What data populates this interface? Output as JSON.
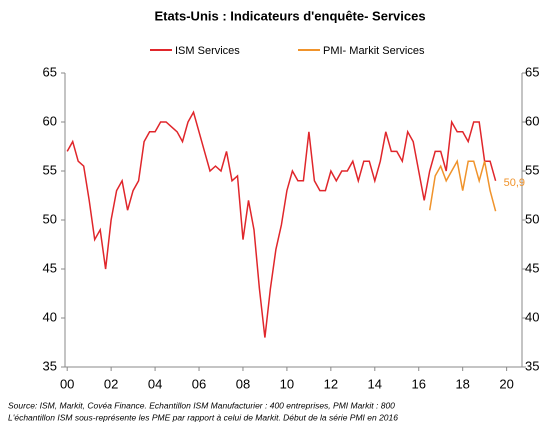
{
  "chart_data": {
    "type": "line",
    "title": "Etats-Unis : Indicateurs d'enquête- Services",
    "source": [
      "Source: ISM, Markit, Covéa Finance. Echantillon ISM Manufacturier : 400 entreprises, PMI Markit : 800",
      "L'échantillon ISM sous-représente les PME par rapport à celui de Markit. Début de la série PMI en 2016"
    ],
    "annotation": "50,9",
    "x": [
      2000,
      2000.25,
      2000.5,
      2000.75,
      2001,
      2001.25,
      2001.5,
      2001.75,
      2002,
      2002.25,
      2002.5,
      2002.75,
      2003,
      2003.25,
      2003.5,
      2003.75,
      2004,
      2004.25,
      2004.5,
      2004.75,
      2005,
      2005.25,
      2005.5,
      2005.75,
      2006,
      2006.25,
      2006.5,
      2006.75,
      2007,
      2007.25,
      2007.5,
      2007.75,
      2008,
      2008.25,
      2008.5,
      2008.75,
      2009,
      2009.25,
      2009.5,
      2009.75,
      2010,
      2010.25,
      2010.5,
      2010.75,
      2011,
      2011.25,
      2011.5,
      2011.75,
      2012,
      2012.25,
      2012.5,
      2012.75,
      2013,
      2013.25,
      2013.5,
      2013.75,
      2014,
      2014.25,
      2014.5,
      2014.75,
      2015,
      2015.25,
      2015.5,
      2015.75,
      2016,
      2016.25,
      2016.5,
      2016.75,
      2017,
      2017.25,
      2017.5,
      2017.75,
      2018,
      2018.25,
      2018.5,
      2018.75,
      2019,
      2019.25,
      2019.5
    ],
    "series": [
      {
        "name": "ISM Services",
        "color": "#e0262b",
        "values": [
          57,
          58,
          56,
          55.5,
          52,
          48,
          49,
          45,
          50,
          53,
          54,
          51,
          53,
          54,
          58,
          59,
          59,
          60,
          60,
          59.5,
          59,
          58,
          60,
          61,
          59,
          57,
          55,
          55.5,
          55,
          57,
          54,
          54.5,
          48,
          52,
          49,
          43,
          38,
          43,
          47,
          49.5,
          53,
          55,
          54,
          54,
          59,
          54,
          53,
          53,
          55,
          54,
          55,
          55,
          56,
          54,
          56,
          56,
          54,
          56,
          59,
          57,
          57,
          56,
          59,
          58,
          55,
          52,
          55,
          57,
          57,
          55,
          60,
          59,
          59,
          58,
          60,
          60,
          56,
          56,
          54
        ]
      },
      {
        "name": "PMI- Markit Services",
        "color": "#f0932b",
        "values": [
          null,
          null,
          null,
          null,
          null,
          null,
          null,
          null,
          null,
          null,
          null,
          null,
          null,
          null,
          null,
          null,
          null,
          null,
          null,
          null,
          null,
          null,
          null,
          null,
          null,
          null,
          null,
          null,
          null,
          null,
          null,
          null,
          null,
          null,
          null,
          null,
          null,
          null,
          null,
          null,
          null,
          null,
          null,
          null,
          null,
          null,
          null,
          null,
          null,
          null,
          null,
          null,
          null,
          null,
          null,
          null,
          null,
          null,
          null,
          null,
          null,
          null,
          null,
          null,
          null,
          null,
          51,
          54.5,
          55.5,
          54,
          55,
          56,
          53,
          56,
          56,
          54,
          56,
          53,
          50.9
        ]
      }
    ],
    "xlim": [
      1999.9,
      2020.7
    ],
    "xticks": [
      {
        "value": 2000,
        "label": "00"
      },
      {
        "value": 2002,
        "label": "02"
      },
      {
        "value": 2004,
        "label": "04"
      },
      {
        "value": 2006,
        "label": "06"
      },
      {
        "value": 2008,
        "label": "08"
      },
      {
        "value": 2010,
        "label": "10"
      },
      {
        "value": 2012,
        "label": "12"
      },
      {
        "value": 2014,
        "label": "14"
      },
      {
        "value": 2016,
        "label": "16"
      },
      {
        "value": 2018,
        "label": "18"
      },
      {
        "value": 2020,
        "label": "20"
      }
    ],
    "ylim": [
      35,
      65
    ],
    "yticks": [
      35,
      40,
      45,
      50,
      55,
      60,
      65
    ],
    "y2lim": [
      35,
      65
    ],
    "y2ticks": [
      35,
      40,
      45,
      50,
      55,
      60,
      65
    ]
  }
}
